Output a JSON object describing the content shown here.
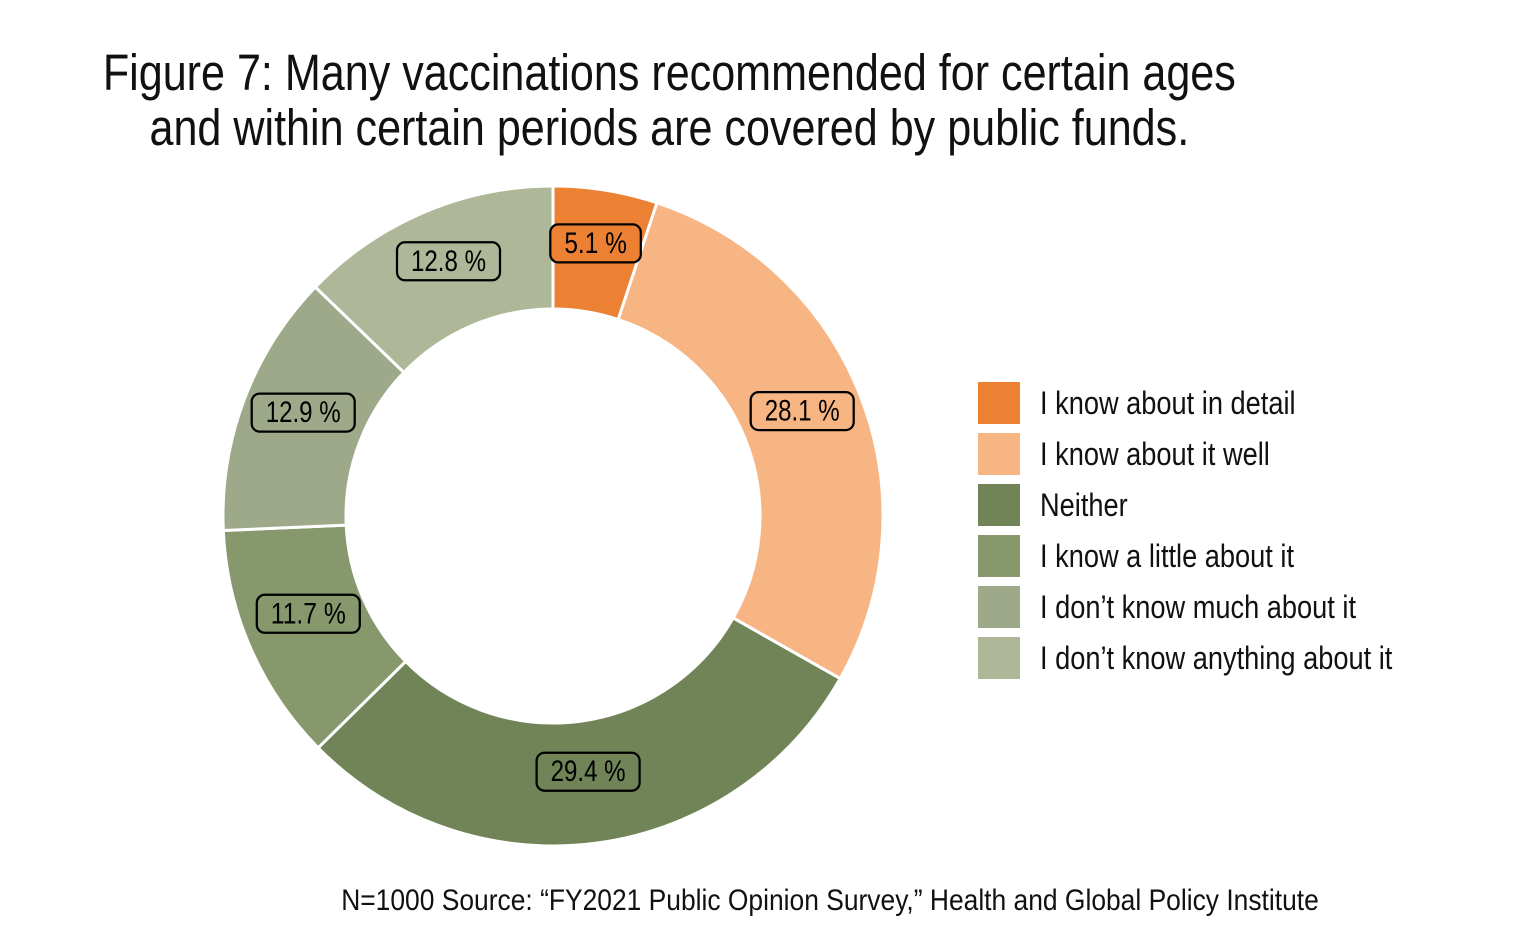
{
  "title": "Figure 7: Many vaccinations recommended for certain ages\nand within certain periods are covered by public funds.",
  "source_note": "N=1000 Source: “FY2021 Public Opinion Survey,” Health and Global Policy Institute",
  "chart_data": {
    "type": "pie",
    "subtype": "donut",
    "title": "Figure 7: Many vaccinations recommended for certain ages and within certain periods are covered by public funds.",
    "sample_size_note": "N=1000",
    "source": "“FY2021 Public Opinion Survey,” Health and Global Policy Institute",
    "start_angle_deg": 0,
    "direction": "clockwise",
    "inner_radius_ratio": 0.63,
    "legend_position": "right",
    "categories": [
      "I know about in detail",
      "I know about it well",
      "Neither",
      "I know a little about it",
      "I don’t know much about it",
      "I don’t know anything about it"
    ],
    "values": [
      5.1,
      28.1,
      29.4,
      11.7,
      12.9,
      12.8
    ],
    "value_labels": [
      "5.1 %",
      "28.1 %",
      "29.4 %",
      "11.7 %",
      "12.9 %",
      "12.8 %"
    ],
    "colors": [
      "#EC8033",
      "#F7B584",
      "#708457",
      "#87986C",
      "#9DA988",
      "#AEB798"
    ],
    "label_box_border_color": "#000000",
    "label_text_color": "#000000",
    "separator_color": "#ffffff"
  }
}
